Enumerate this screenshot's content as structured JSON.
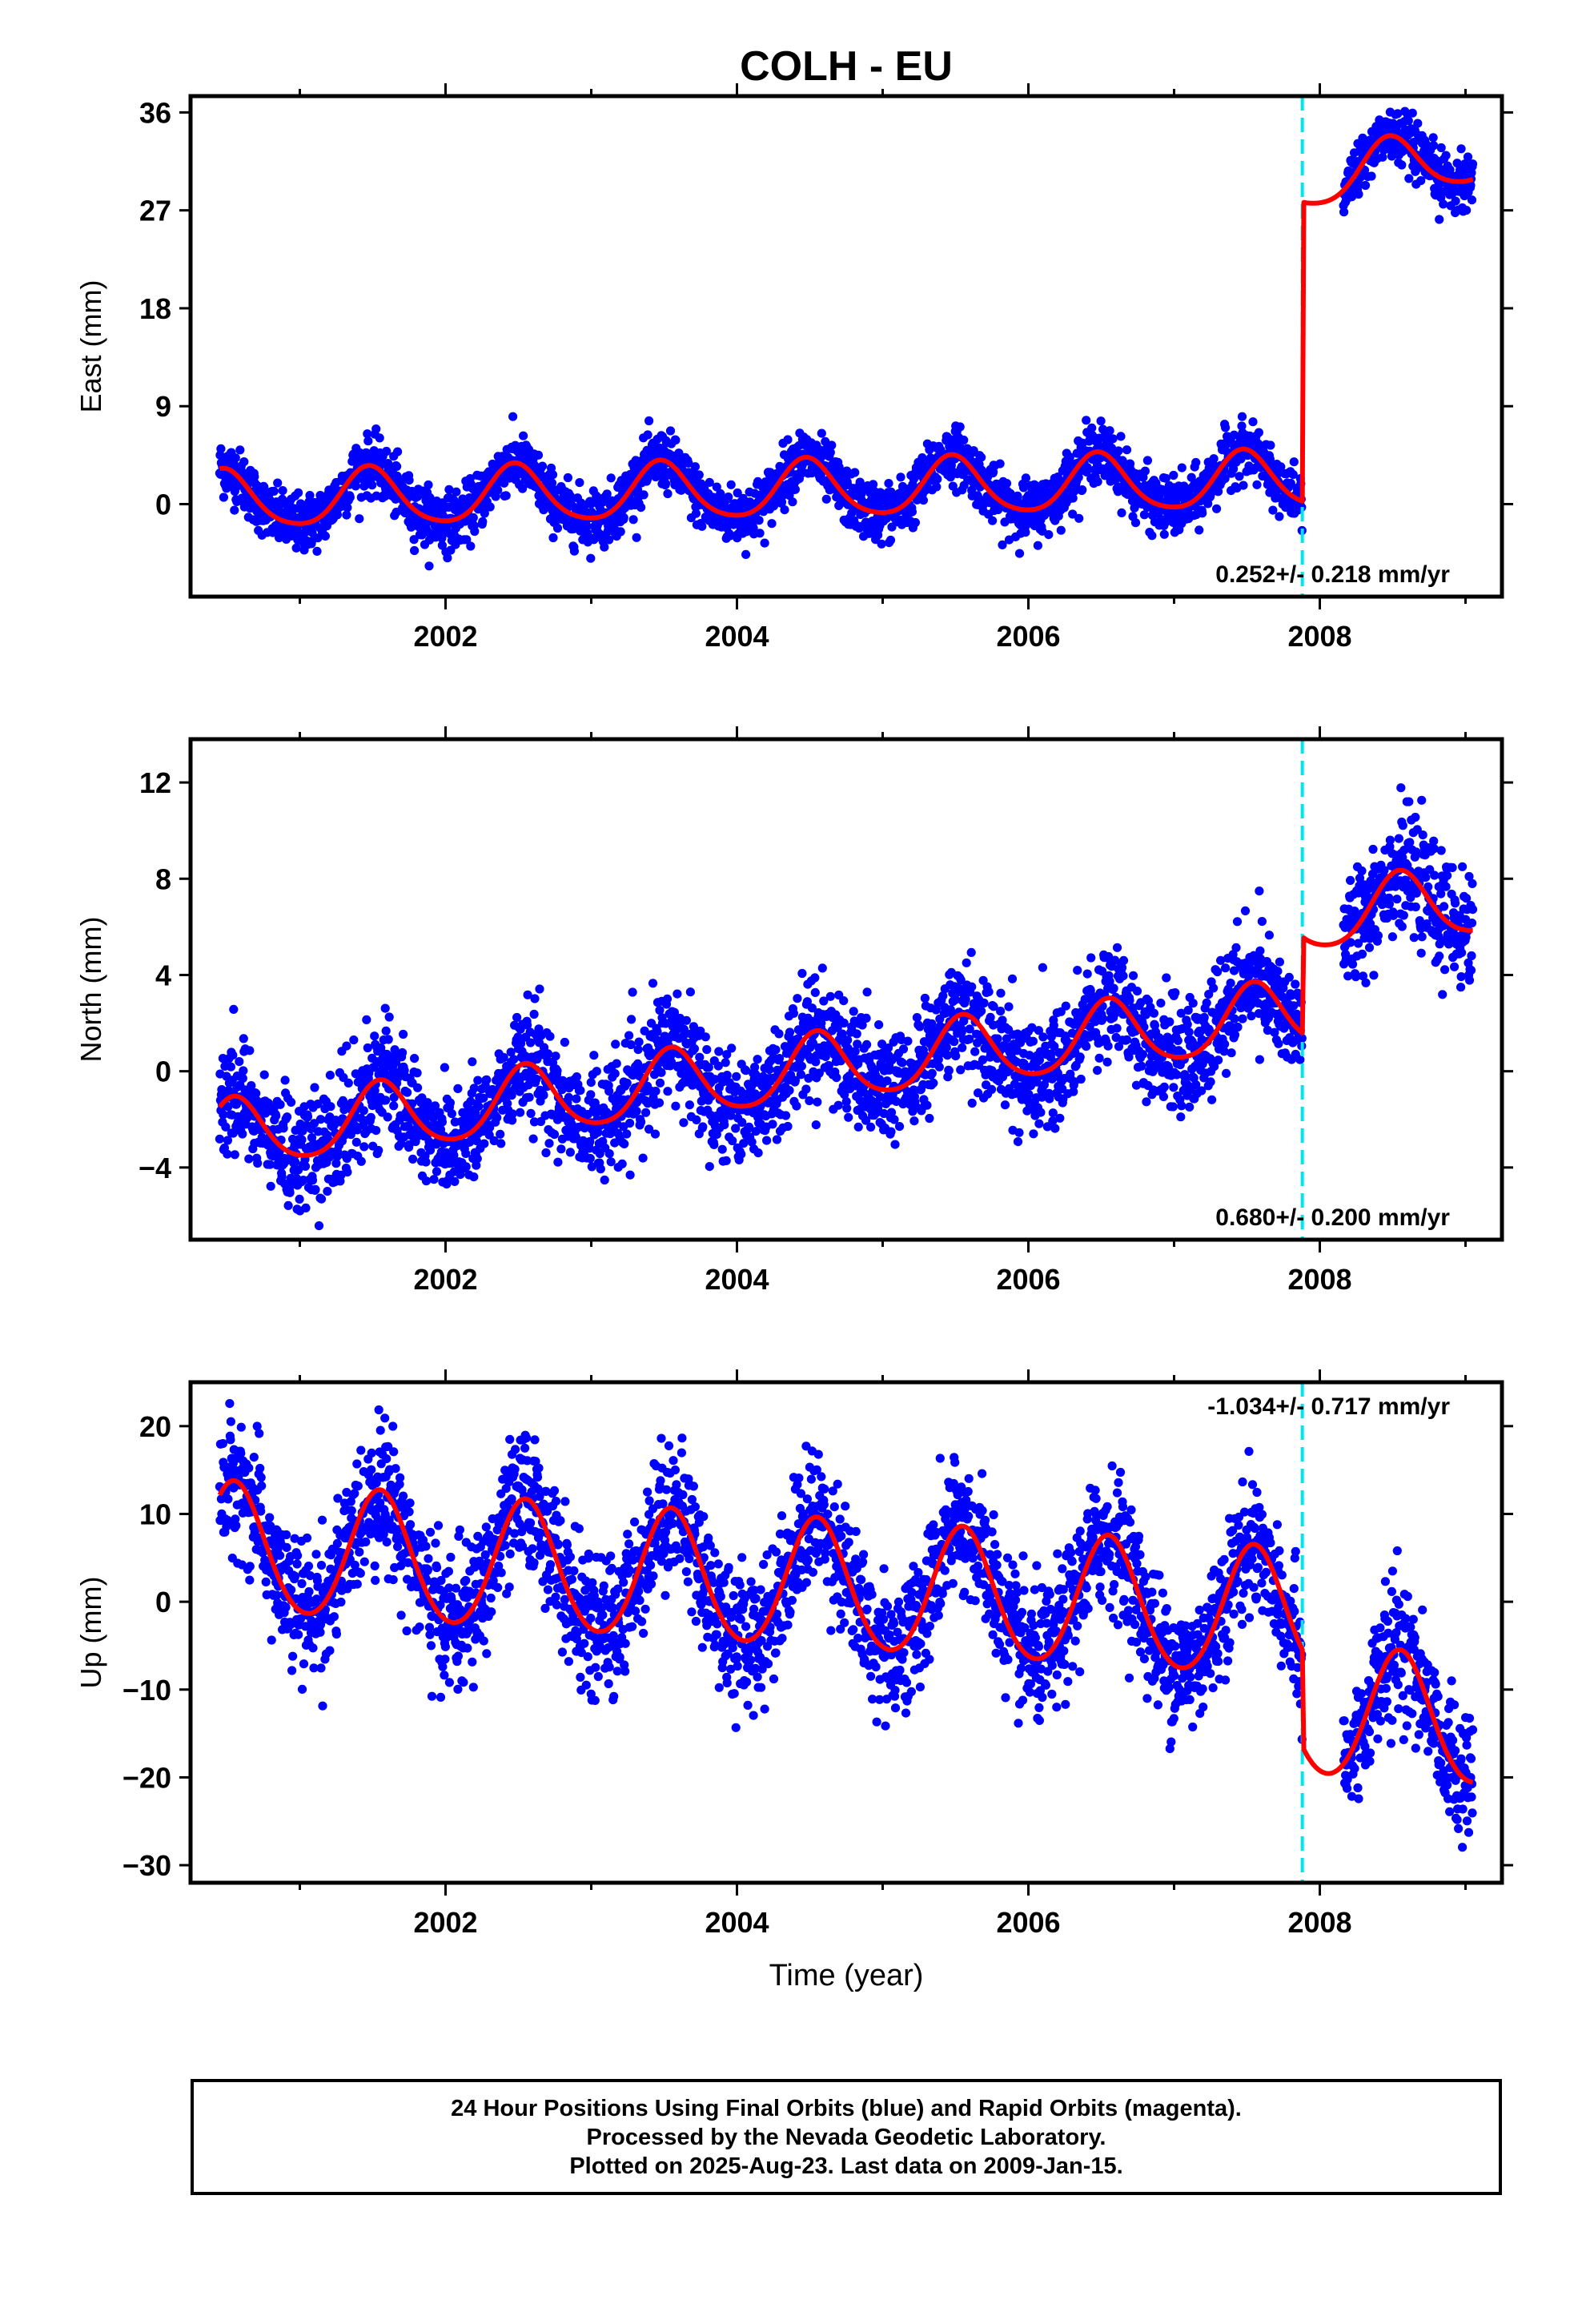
{
  "title": "COLH - EU",
  "colors": {
    "observed": "#0000ff",
    "model": "#ff0000",
    "offset_marker": "#00e5ee",
    "frame": "#000000"
  },
  "chart_data": [
    {
      "type": "scatter",
      "panel": "east",
      "ylabel": "East (mm)",
      "xlim": [
        2000.25,
        2009.25
      ],
      "ylim": [
        -8.5,
        37.5
      ],
      "yticks": [
        0,
        9,
        18,
        27,
        36
      ],
      "xticks": [
        2002,
        2004,
        2006,
        2008
      ],
      "x_minor_ticks": [
        2001,
        2003,
        2005,
        2007,
        2009
      ],
      "rate_label": "0.252+/- 0.218 mm/yr",
      "rate_label_position": "bottom-right",
      "offset_epoch": 2007.88,
      "series": [
        {
          "name": "Final Orbits",
          "style": "points",
          "model": {
            "t0": 2000.45,
            "t1": 2009.05,
            "base": 0.3,
            "rate": 0.252,
            "annual_amp": 2.6,
            "annual_peak": 0.48,
            "semi_amp": 0.4,
            "semi_phase": 0.2,
            "break": 2007.88,
            "jump": 27.5,
            "post_rate": 2.0,
            "scatter": 1.3
          }
        },
        {
          "name": "Model",
          "style": "line",
          "model": {
            "t0": 2000.45,
            "t1": 2009.05,
            "base": 0.3,
            "rate": 0.252,
            "annual_amp": 2.6,
            "annual_peak": 0.48,
            "semi_amp": 0.4,
            "semi_phase": 0.2,
            "break": 2007.88,
            "jump": 27.5,
            "post_rate": 2.0
          }
        }
      ]
    },
    {
      "type": "scatter",
      "panel": "north",
      "ylabel": "North (mm)",
      "xlim": [
        2000.25,
        2009.25
      ],
      "ylim": [
        -7.0,
        13.8
      ],
      "yticks": [
        -4,
        0,
        4,
        8,
        12
      ],
      "xticks": [
        2002,
        2004,
        2006,
        2008
      ],
      "x_minor_ticks": [
        2001,
        2003,
        2005,
        2007,
        2009
      ],
      "rate_label": "0.680+/- 0.200 mm/yr",
      "rate_label_position": "bottom-right",
      "offset_epoch": 2007.88,
      "series": [
        {
          "name": "Final Orbits",
          "style": "points",
          "model": {
            "t0": 2000.45,
            "t1": 2009.05,
            "base": -2.7,
            "rate": 0.68,
            "annual_amp": 1.4,
            "annual_peak": 0.55,
            "semi_amp": 0.2,
            "semi_phase": 0.1,
            "break": 2007.88,
            "jump": 4.0,
            "post_rate": 0.6,
            "scatter": 1.15
          }
        },
        {
          "name": "Model",
          "style": "line",
          "model": {
            "t0": 2000.45,
            "t1": 2009.05,
            "base": -2.7,
            "rate": 0.68,
            "annual_amp": 1.4,
            "annual_peak": 0.55,
            "semi_amp": 0.2,
            "semi_phase": 0.1,
            "break": 2007.88,
            "jump": 4.0,
            "post_rate": 0.6
          }
        }
      ]
    },
    {
      "type": "scatter",
      "panel": "up",
      "ylabel": "Up (mm)",
      "xlabel": "Time (year)",
      "xlim": [
        2000.25,
        2009.25
      ],
      "ylim": [
        -32,
        25
      ],
      "yticks": [
        -30,
        -20,
        -10,
        0,
        10,
        20
      ],
      "xticks": [
        2002,
        2004,
        2006,
        2008
      ],
      "x_minor_ticks": [
        2001,
        2003,
        2005,
        2007,
        2009
      ],
      "rate_label": "-1.034+/- 0.717 mm/yr",
      "rate_label_position": "top-right",
      "offset_epoch": 2007.88,
      "series": [
        {
          "name": "Final Orbits",
          "style": "points",
          "model": {
            "t0": 2000.45,
            "t1": 2009.05,
            "base": 6.0,
            "rate": -1.034,
            "annual_amp": 7.3,
            "annual_peak": 0.55,
            "semi_amp": 0.6,
            "semi_phase": 0.1,
            "break": 2007.88,
            "jump": -11.0,
            "post_rate": -1.0,
            "scatter": 3.8
          }
        },
        {
          "name": "Model",
          "style": "line",
          "model": {
            "t0": 2000.45,
            "t1": 2009.05,
            "base": 6.0,
            "rate": -1.034,
            "annual_amp": 7.3,
            "annual_peak": 0.55,
            "semi_amp": 0.6,
            "semi_phase": 0.1,
            "break": 2007.88,
            "jump": -11.0,
            "post_rate": -1.0
          }
        }
      ]
    }
  ],
  "footer": {
    "line1": "24 Hour Positions Using Final Orbits (blue) and Rapid Orbits (magenta).",
    "line2": "Processed by the Nevada Geodetic Laboratory.",
    "line3": "Plotted on 2025-Aug-23. Last data on 2009-Jan-15."
  }
}
